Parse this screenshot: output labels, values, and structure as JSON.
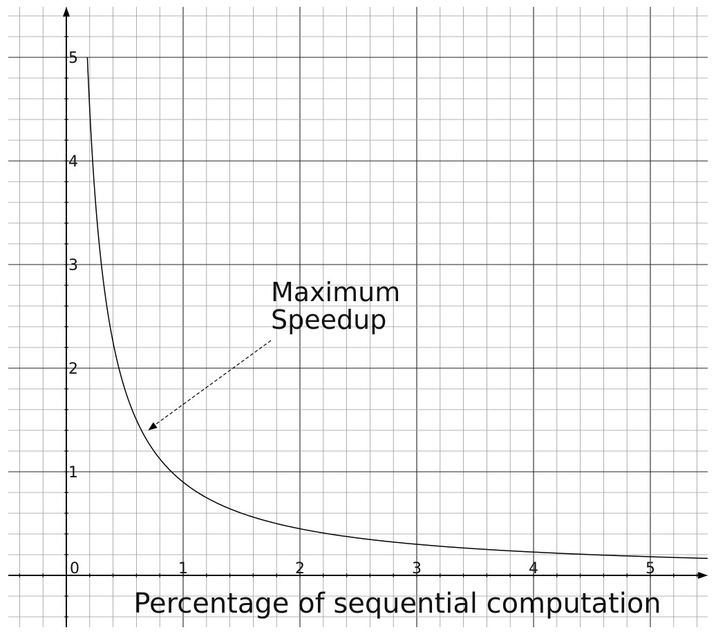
{
  "chart_data": {
    "type": "line",
    "title": "",
    "xlabel": "Percentage of sequential computation",
    "ylabel": "",
    "xlim": [
      -0.5,
      5.5
    ],
    "ylim": [
      -0.5,
      5.5
    ],
    "x_ticks": [
      0,
      1,
      2,
      3,
      4,
      5
    ],
    "x_tick_labels": [
      "0",
      "1",
      "2",
      "3",
      "4",
      "5"
    ],
    "y_ticks": [
      1,
      2,
      3,
      4,
      5
    ],
    "y_tick_labels": [
      "1",
      "2",
      "3",
      "4",
      "5"
    ],
    "grid": true,
    "minor_grid_step": 0.2,
    "series": [
      {
        "x": [
          0.18,
          0.2,
          0.25,
          0.3,
          0.35,
          0.4,
          0.5,
          0.6,
          0.7,
          0.8,
          0.9,
          1.0,
          1.25,
          1.5,
          1.75,
          2.0,
          2.5,
          3.0,
          3.5,
          4.0,
          4.5,
          5.0,
          5.5
        ],
        "values": [
          5.0,
          4.5,
          3.6,
          3.0,
          2.57,
          2.25,
          1.8,
          1.5,
          1.29,
          1.13,
          1.0,
          0.9,
          0.72,
          0.6,
          0.51,
          0.45,
          0.36,
          0.3,
          0.26,
          0.23,
          0.2,
          0.18,
          0.16
        ],
        "color": "#000000"
      }
    ],
    "annotations": [
      {
        "text_lines": [
          "Maximum",
          "Speedup"
        ],
        "points_to": [
          0.7,
          1.4
        ]
      }
    ]
  }
}
